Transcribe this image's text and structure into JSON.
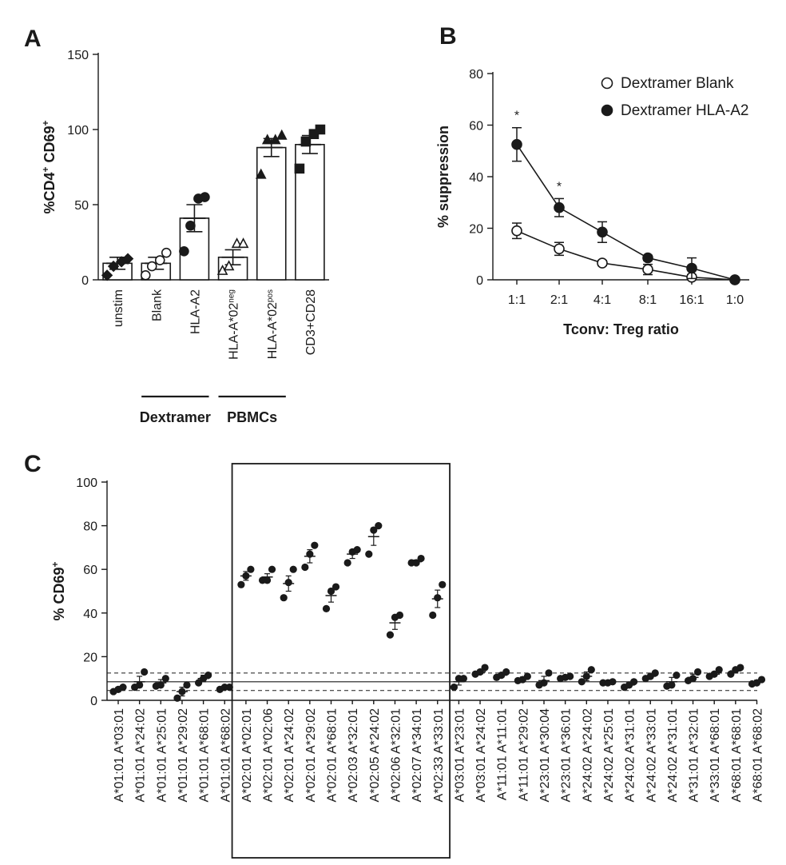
{
  "chart_data": [
    {
      "panel": "A",
      "type": "bar",
      "ylabel": "%CD4",
      "ylabel_sup1": "+",
      "ylabel_rest": " CD69",
      "ylabel_sup2": "+",
      "ylim": [
        0,
        150
      ],
      "yticks": [
        "0",
        "50",
        "100",
        "150"
      ],
      "ytick_values": [
        0,
        50,
        100,
        150
      ],
      "categories": [
        {
          "label": "unstim",
          "sup": "",
          "mean": 11,
          "err": 4,
          "marker": "diamond",
          "filled": true,
          "points": [
            3,
            9,
            12,
            14
          ]
        },
        {
          "label": "Blank",
          "sup": "",
          "mean": 11,
          "err": 4,
          "marker": "circle",
          "filled": false,
          "points": [
            3,
            9,
            13,
            18
          ]
        },
        {
          "label": "HLA-A2",
          "sup": "",
          "mean": 41,
          "err": 9,
          "marker": "circle",
          "filled": true,
          "points": [
            19,
            36,
            54,
            55
          ]
        },
        {
          "label": "HLA-A*02",
          "sup": "neg",
          "mean": 15,
          "err": 5,
          "marker": "triangle",
          "filled": false,
          "points": [
            6,
            9,
            24,
            24
          ]
        },
        {
          "label": "HLA-A*02",
          "sup": "pos",
          "mean": 88,
          "err": 6,
          "marker": "triangle",
          "filled": true,
          "points": [
            70,
            93,
            93,
            96
          ]
        },
        {
          "label": "CD3+CD28",
          "sup": "",
          "mean": 90,
          "err": 6,
          "marker": "square",
          "filled": true,
          "points": [
            74,
            92,
            97,
            100
          ]
        }
      ],
      "groups": [
        {
          "label": "Dextramer",
          "from": 1,
          "to": 2
        },
        {
          "label": "PBMCs",
          "from": 3,
          "to": 4
        }
      ]
    },
    {
      "panel": "B",
      "type": "line",
      "ylabel": "% suppression",
      "xlabel": "Tconv: Treg ratio",
      "ylim": [
        0,
        80
      ],
      "yticks": [
        "0",
        "20",
        "40",
        "60",
        "80"
      ],
      "ytick_values": [
        0,
        20,
        40,
        60,
        80
      ],
      "categories": [
        "1:1",
        "2:1",
        "4:1",
        "8:1",
        "16:1",
        "1:0"
      ],
      "series": [
        {
          "name": "Dextramer Blank",
          "filled": false,
          "values": [
            19,
            12,
            6.5,
            4,
            1,
            0
          ],
          "errors": [
            3,
            2.5,
            1,
            2,
            1,
            0
          ]
        },
        {
          "name": "Dextramer HLA-A2",
          "filled": true,
          "values": [
            52.5,
            28,
            18.5,
            8.5,
            4.5,
            0
          ],
          "errors": [
            6.5,
            3.5,
            4,
            1,
            4,
            0
          ]
        }
      ],
      "annotations": [
        {
          "text": "*",
          "category": 0
        },
        {
          "text": "*",
          "category": 1
        }
      ],
      "legend_position": "top-right"
    },
    {
      "panel": "C",
      "type": "scatter",
      "ylabel": "% CD69",
      "ylabel_sup": "+",
      "ylim": [
        0,
        100
      ],
      "yticks": [
        "0",
        "20",
        "40",
        "60",
        "80",
        "100"
      ],
      "ytick_values": [
        0,
        20,
        40,
        60,
        80,
        100
      ],
      "reference_lines": {
        "solid": 8.5,
        "dashed": [
          4.5,
          12.5
        ]
      },
      "highlight_box": {
        "from": 6,
        "to": 15
      },
      "categories": [
        {
          "label": "A*01:01 A*03:01",
          "points": [
            4,
            5,
            6
          ],
          "mean": 5,
          "err": 1
        },
        {
          "label": "A*01:01 A*24:02",
          "points": [
            6,
            7,
            13
          ],
          "mean": 8.5,
          "err": 2.5
        },
        {
          "label": "A*01:01 A*25:01",
          "points": [
            6.5,
            7,
            10
          ],
          "mean": 8,
          "err": 1.5
        },
        {
          "label": "A*01:01 A*29:02",
          "points": [
            1,
            4,
            7
          ],
          "mean": 4,
          "err": 2
        },
        {
          "label": "A*01:01 A*68:01",
          "points": [
            8,
            10,
            11.5
          ],
          "mean": 10,
          "err": 1.5
        },
        {
          "label": "A*01:01 A*68:02",
          "points": [
            5,
            6,
            6
          ],
          "mean": 5.5,
          "err": 0.5
        },
        {
          "label": "A*02:01 A*02:01",
          "points": [
            53,
            57,
            60
          ],
          "mean": 57,
          "err": 2
        },
        {
          "label": "A*02:01 A*02:06",
          "points": [
            55,
            55,
            60
          ],
          "mean": 56.5,
          "err": 1.5
        },
        {
          "label": "A*02:01 A*24:02",
          "points": [
            47,
            54,
            60
          ],
          "mean": 53.5,
          "err": 3.5
        },
        {
          "label": "A*02:01 A*29:02",
          "points": [
            61,
            67,
            71
          ],
          "mean": 66,
          "err": 3
        },
        {
          "label": "A*02:01 A*68:01",
          "points": [
            42,
            50,
            52
          ],
          "mean": 48,
          "err": 3
        },
        {
          "label": "A*02:03 A*32:01",
          "points": [
            63,
            68,
            69
          ],
          "mean": 67,
          "err": 2
        },
        {
          "label": "A*02:05 A*24:02",
          "points": [
            67,
            78,
            80
          ],
          "mean": 75,
          "err": 4
        },
        {
          "label": "A*02:06 A*32:01",
          "points": [
            30,
            38,
            39
          ],
          "mean": 35.5,
          "err": 3
        },
        {
          "label": "A*02:07 A*34:01",
          "points": [
            63,
            63,
            65
          ],
          "mean": 63.5,
          "err": 0.8
        },
        {
          "label": "A*02:33 A*33:01",
          "points": [
            39,
            47,
            53
          ],
          "mean": 46.5,
          "err": 4
        },
        {
          "label": "A*03:01 A*23:01",
          "points": [
            6,
            10,
            10
          ],
          "mean": 8.5,
          "err": 1.5
        },
        {
          "label": "A*03:01 A*24:02",
          "points": [
            12,
            13,
            15
          ],
          "mean": 13,
          "err": 1
        },
        {
          "label": "A*11:01 A*11:01",
          "points": [
            10.5,
            11.5,
            13
          ],
          "mean": 11.5,
          "err": 1
        },
        {
          "label": "A*11:01 A*29:02",
          "points": [
            9,
            9.5,
            11
          ],
          "mean": 10,
          "err": 0.7
        },
        {
          "label": "A*23:01 A*30:04",
          "points": [
            7,
            8,
            12.5
          ],
          "mean": 9,
          "err": 2
        },
        {
          "label": "A*23:01 A*36:01",
          "points": [
            10,
            10.5,
            11
          ],
          "mean": 10.5,
          "err": 0.5
        },
        {
          "label": "A*24:02 A*24:02",
          "points": [
            8.5,
            11,
            14
          ],
          "mean": 11,
          "err": 2
        },
        {
          "label": "A*24:02 A*25:01",
          "points": [
            8,
            8,
            8.5
          ],
          "mean": 8,
          "err": 0.3
        },
        {
          "label": "A*24:02 A*31:01",
          "points": [
            6,
            7,
            8.5
          ],
          "mean": 7,
          "err": 1
        },
        {
          "label": "A*24:02 A*33:01",
          "points": [
            10,
            11,
            12.5
          ],
          "mean": 11,
          "err": 1
        },
        {
          "label": "A*24:02 A*31:01",
          "points": [
            6.5,
            7,
            11.5
          ],
          "mean": 8.5,
          "err": 2
        },
        {
          "label": "A*31:01 A*32:01",
          "points": [
            9,
            10,
            13
          ],
          "mean": 10.5,
          "err": 1.5
        },
        {
          "label": "A*33:01 A*68:01",
          "points": [
            11,
            12,
            14
          ],
          "mean": 12,
          "err": 1
        },
        {
          "label": "A*68:01 A*68:01",
          "points": [
            12,
            14,
            15
          ],
          "mean": 13.5,
          "err": 1
        },
        {
          "label": "A*68:01 A*68:02",
          "points": [
            7.5,
            8,
            9.5
          ],
          "mean": 8.5,
          "err": 0.7
        }
      ]
    }
  ]
}
